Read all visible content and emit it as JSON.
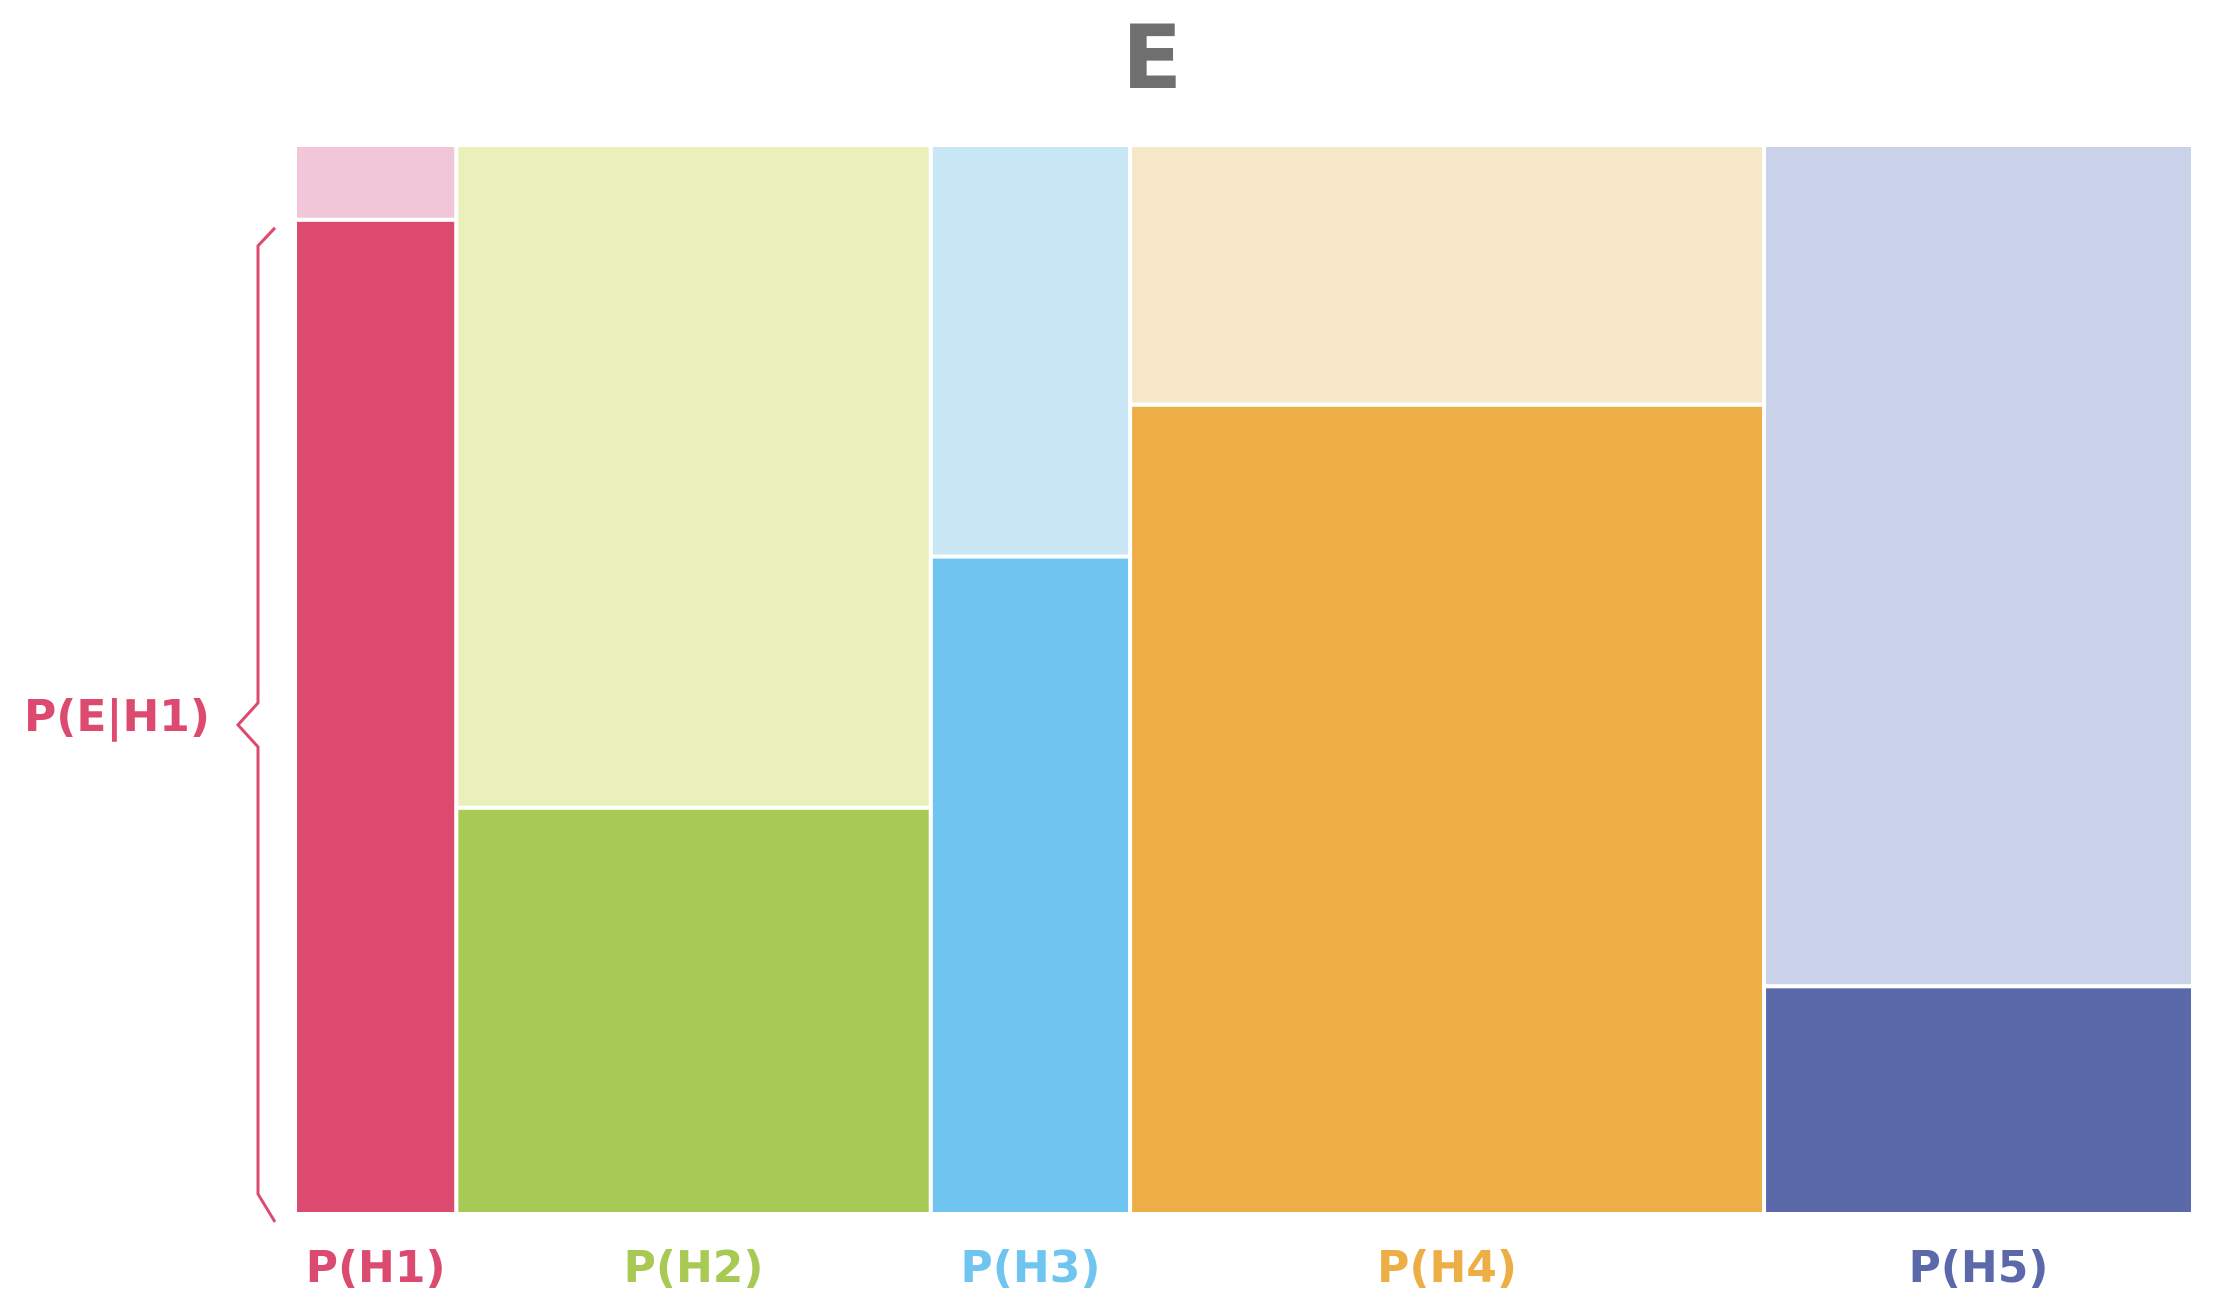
{
  "title": "E",
  "bracket": {
    "label": "P(E|H1)",
    "color": "#dd4a6f"
  },
  "hypotheses": [
    {
      "label": "P(H1)",
      "prior": 0.085,
      "likelihood": 0.93,
      "color": "#dd4a6f",
      "light": "#f0c6d8"
    },
    {
      "label": "P(H2)",
      "prior": 0.25,
      "likelihood": 0.38,
      "color": "#a8ca55",
      "light": "#eaf0b9"
    },
    {
      "label": "P(H3)",
      "prior": 0.105,
      "likelihood": 0.615,
      "color": "#6fc5ef",
      "light": "#c8e6f3"
    },
    {
      "label": "P(H4)",
      "prior": 0.334,
      "likelihood": 0.757,
      "color": "#eeae46",
      "light": "#f7e7c9"
    },
    {
      "label": "P(H5)",
      "prior": 0.226,
      "likelihood": 0.213,
      "color": "#5b68aa",
      "light": "#cad2e9"
    }
  ]
}
